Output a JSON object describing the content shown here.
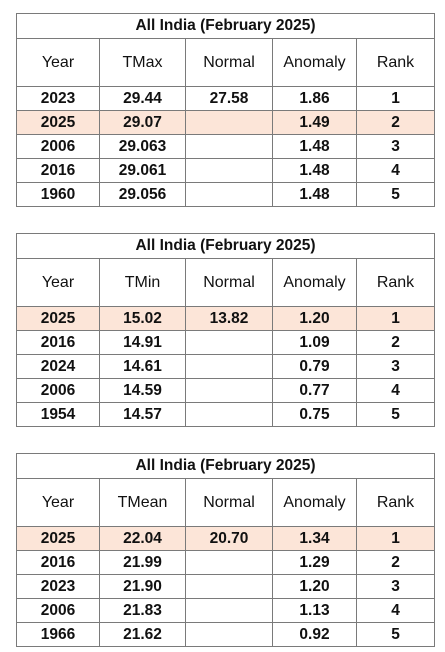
{
  "tables": [
    {
      "title": "All India (February 2025)",
      "headers": [
        "Year",
        "TMax",
        "Normal",
        "Anomaly",
        "Rank"
      ],
      "rows": [
        {
          "year": "2023",
          "value": "29.44",
          "normal": "27.58",
          "anomaly": "1.86",
          "rank": "1",
          "highlight": false
        },
        {
          "year": "2025",
          "value": "29.07",
          "normal": "",
          "anomaly": "1.49",
          "rank": "2",
          "highlight": true
        },
        {
          "year": "2006",
          "value": "29.063",
          "normal": "",
          "anomaly": "1.48",
          "rank": "3",
          "highlight": false
        },
        {
          "year": "2016",
          "value": "29.061",
          "normal": "",
          "anomaly": "1.48",
          "rank": "4",
          "highlight": false
        },
        {
          "year": "1960",
          "value": "29.056",
          "normal": "",
          "anomaly": "1.48",
          "rank": "5",
          "highlight": false
        }
      ]
    },
    {
      "title": "All India (February 2025)",
      "headers": [
        "Year",
        "TMin",
        "Normal",
        "Anomaly",
        "Rank"
      ],
      "rows": [
        {
          "year": "2025",
          "value": "15.02",
          "normal": "13.82",
          "anomaly": "1.20",
          "rank": "1",
          "highlight": true
        },
        {
          "year": "2016",
          "value": "14.91",
          "normal": "",
          "anomaly": "1.09",
          "rank": "2",
          "highlight": false
        },
        {
          "year": "2024",
          "value": "14.61",
          "normal": "",
          "anomaly": "0.79",
          "rank": "3",
          "highlight": false
        },
        {
          "year": "2006",
          "value": "14.59",
          "normal": "",
          "anomaly": "0.77",
          "rank": "4",
          "highlight": false
        },
        {
          "year": "1954",
          "value": "14.57",
          "normal": "",
          "anomaly": "0.75",
          "rank": "5",
          "highlight": false
        }
      ]
    },
    {
      "title": "All India (February 2025)",
      "headers": [
        "Year",
        "TMean",
        "Normal",
        "Anomaly",
        "Rank"
      ],
      "rows": [
        {
          "year": "2025",
          "value": "22.04",
          "normal": "20.70",
          "anomaly": "1.34",
          "rank": "1",
          "highlight": true
        },
        {
          "year": "2016",
          "value": "21.99",
          "normal": "",
          "anomaly": "1.29",
          "rank": "2",
          "highlight": false
        },
        {
          "year": "2023",
          "value": "21.90",
          "normal": "",
          "anomaly": "1.20",
          "rank": "3",
          "highlight": false
        },
        {
          "year": "2006",
          "value": "21.83",
          "normal": "",
          "anomaly": "1.13",
          "rank": "4",
          "highlight": false
        },
        {
          "year": "1966",
          "value": "21.62",
          "normal": "",
          "anomaly": "0.92",
          "rank": "5",
          "highlight": false
        }
      ]
    }
  ],
  "highlight_color": "#fce5d8"
}
